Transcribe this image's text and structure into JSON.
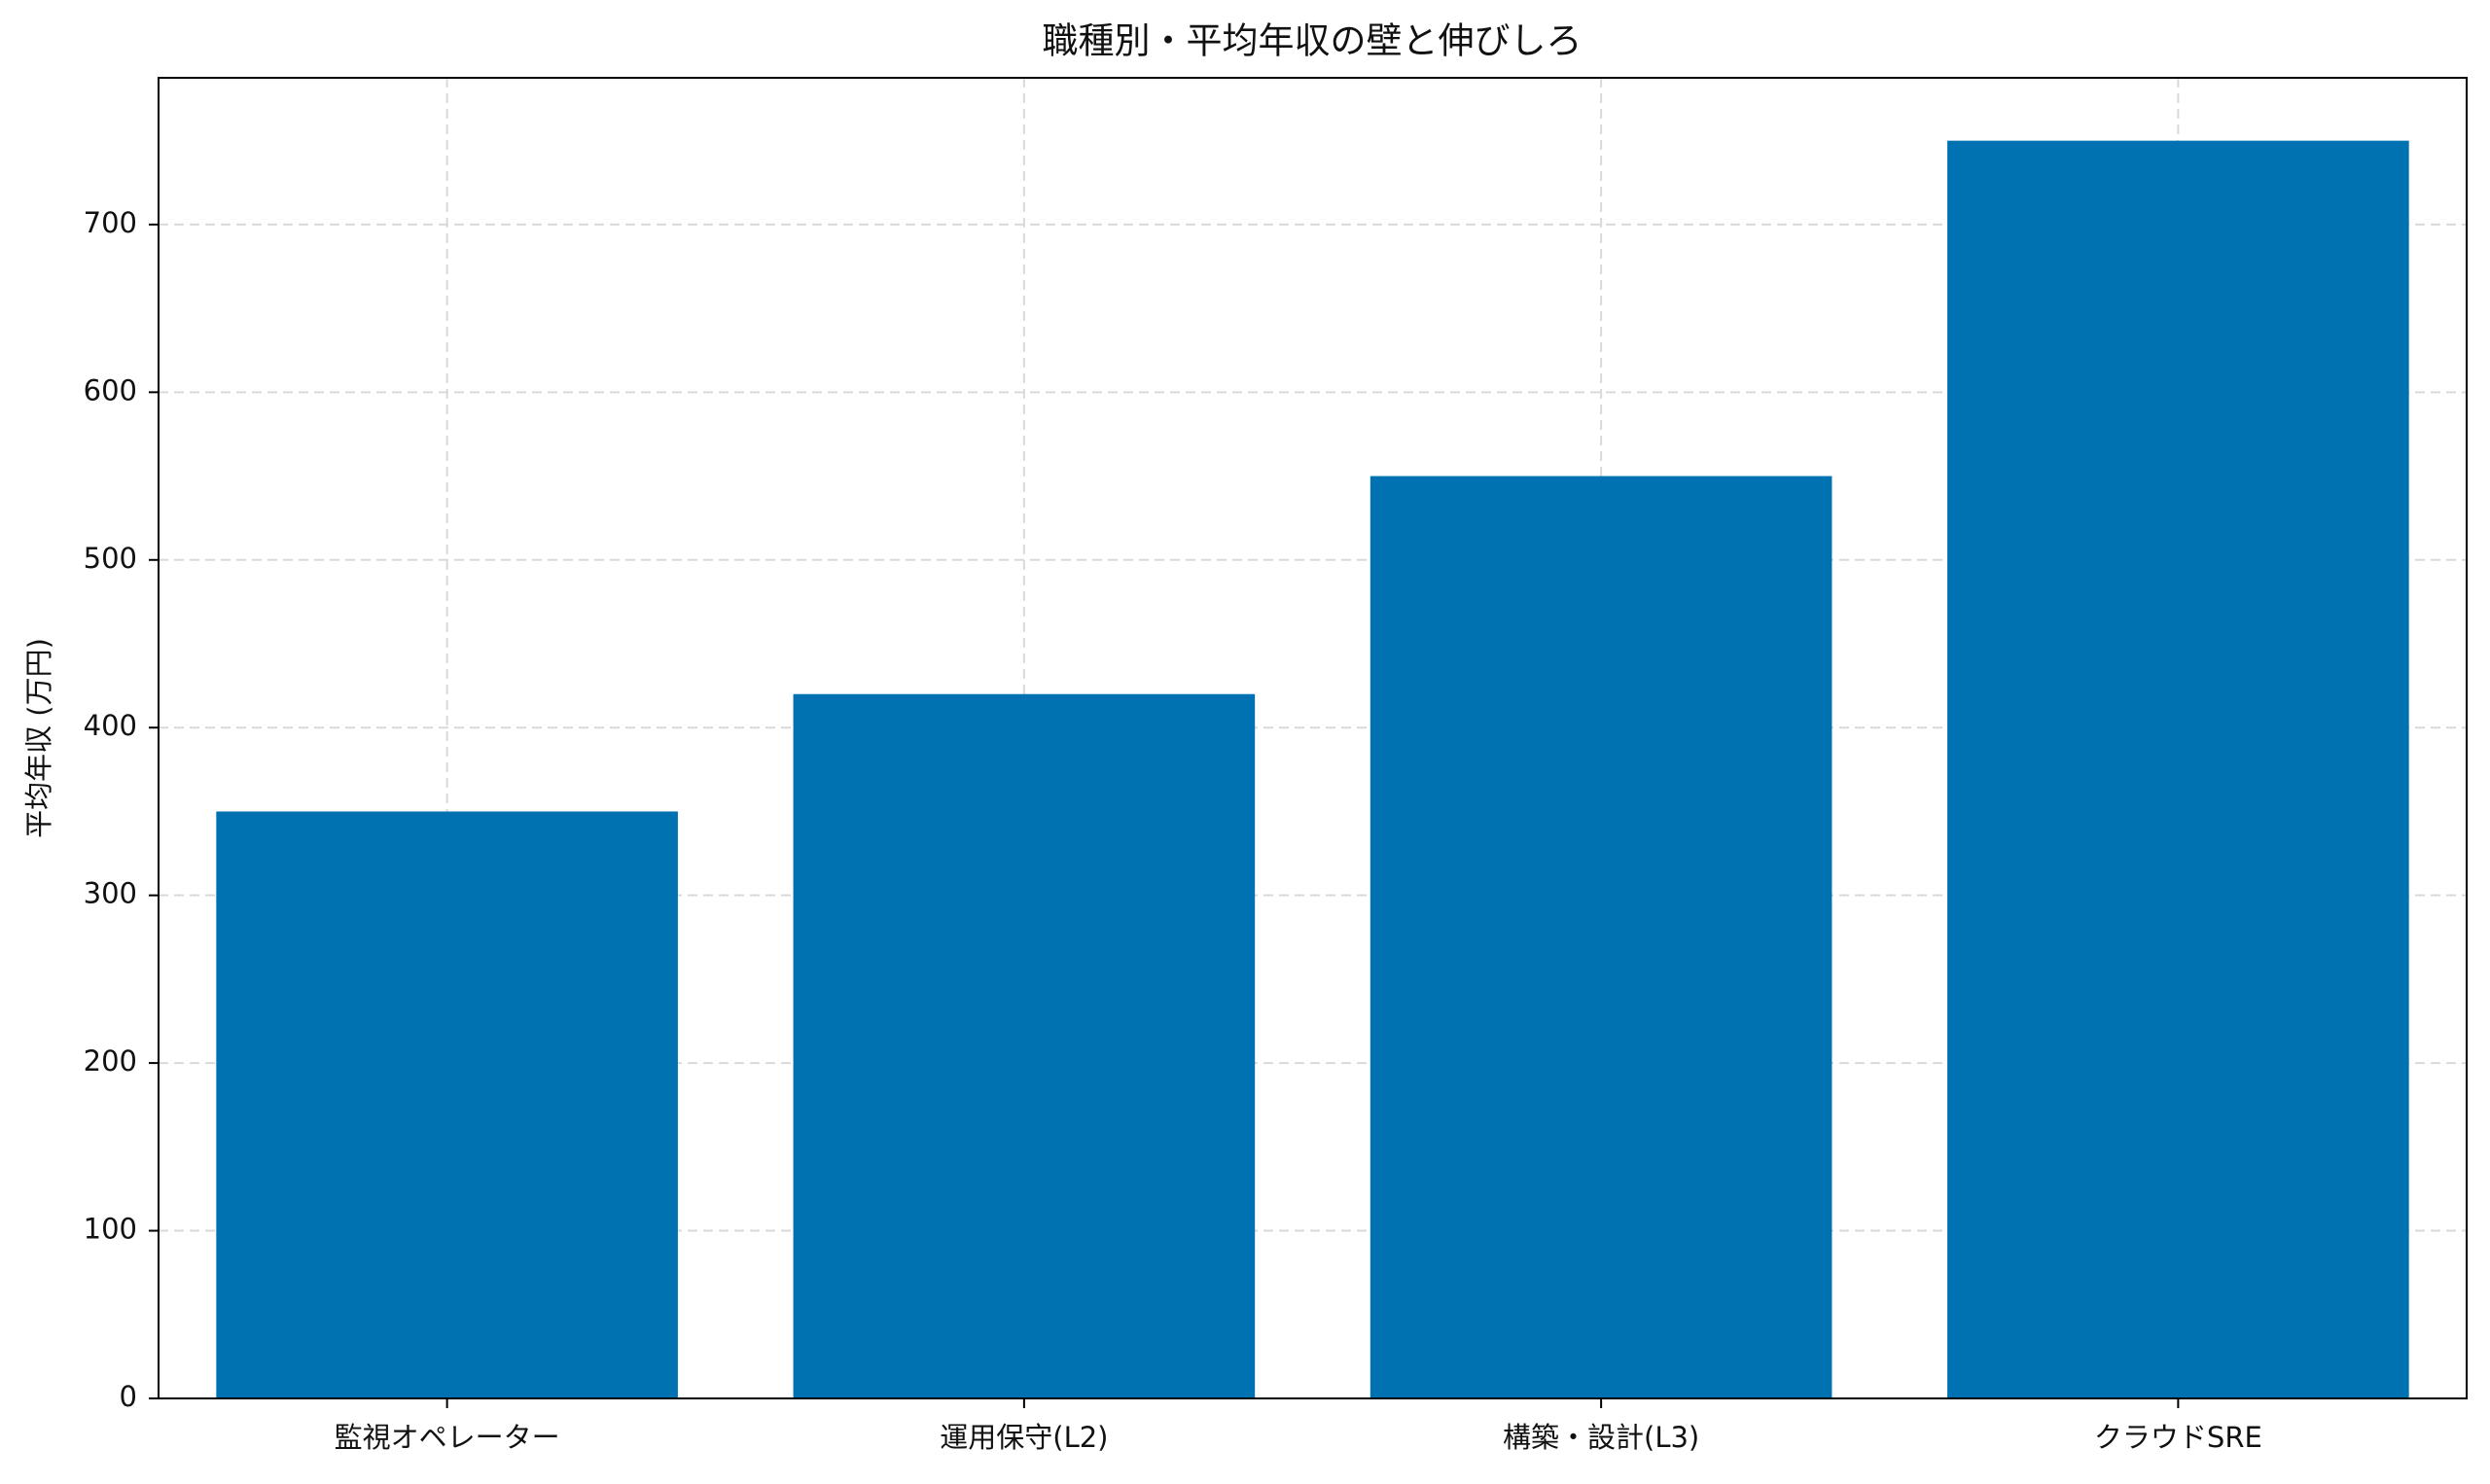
{
  "chart_data": {
    "type": "bar",
    "title": "職種別・平均年収の壁と伸びしろ",
    "y_label": "平均年収 (万円)",
    "categories": [
      "監視オペレーター",
      "運用保守(L2)",
      "構築・設計(L3)",
      "クラウドSRE"
    ],
    "values": [
      350,
      420,
      550,
      750
    ],
    "color": "#0072b2",
    "ylim": [
      0,
      787.5
    ],
    "yticks": [
      0,
      100,
      200,
      300,
      400,
      500,
      600,
      700
    ],
    "grid": true
  }
}
